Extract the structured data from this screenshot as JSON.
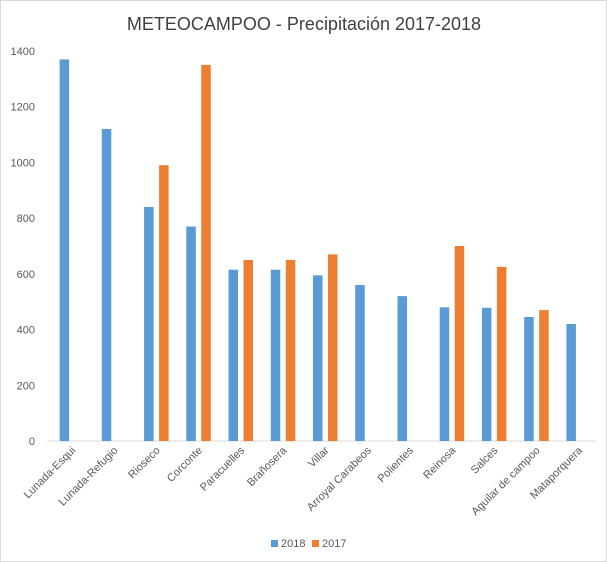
{
  "chart_data": {
    "type": "bar",
    "title": "METEOCAMPOO - Precipitación 2017-2018",
    "xlabel": "",
    "ylabel": "",
    "ylim": [
      0,
      1400
    ],
    "yticks": [
      0,
      200,
      400,
      600,
      800,
      1000,
      1200,
      1400
    ],
    "grid": false,
    "legend_position": "bottom",
    "categories": [
      "Lunada-Esqui",
      "Lunada-Refugio",
      "Rioseco",
      "Corconte",
      "Paracuelles",
      "Brañosera",
      "Villar",
      "Arroyal Carabeos",
      "Polientes",
      "Reinosa",
      "Salces",
      "Aguilar de campoo",
      "Mataporquera"
    ],
    "series": [
      {
        "name": "2018",
        "color": "#5b9bd5",
        "values": [
          1370,
          1120,
          840,
          770,
          615,
          615,
          595,
          560,
          520,
          480,
          478,
          445,
          420
        ]
      },
      {
        "name": "2017",
        "color": "#ed7d31",
        "values": [
          null,
          null,
          990,
          1350,
          650,
          650,
          670,
          null,
          null,
          700,
          625,
          470,
          null
        ]
      }
    ]
  }
}
